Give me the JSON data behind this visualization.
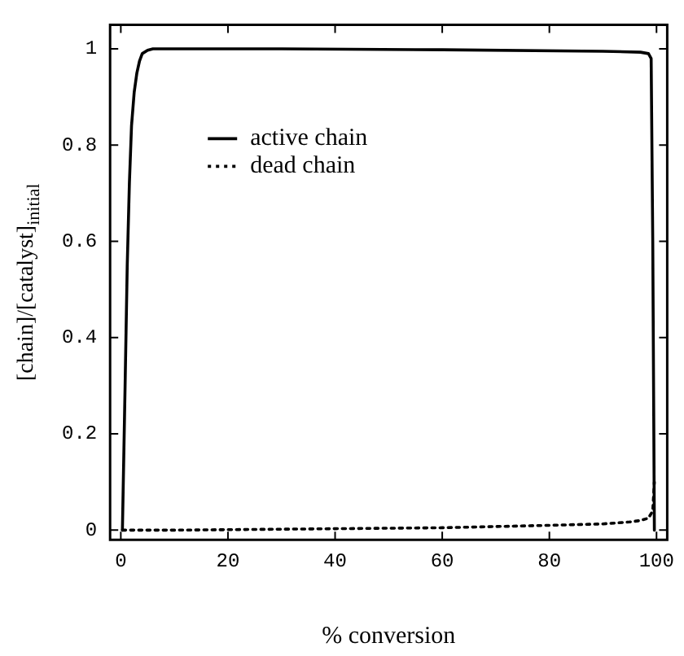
{
  "chart_data": {
    "type": "line",
    "xlabel": "% conversion",
    "ylabel": "[chain]/[catalyst]$_{initial}$",
    "xlim": [
      -2,
      102
    ],
    "ylim": [
      -0.02,
      1.05
    ],
    "xticks": [
      0,
      20,
      40,
      60,
      80,
      100
    ],
    "yticks": [
      0,
      0.2,
      0.4,
      0.6,
      0.8,
      1
    ],
    "grid": false,
    "legend": "top left",
    "marker": "none",
    "series": [
      {
        "name": "active chain",
        "color": "#000000",
        "line_style": "solid",
        "x": [
          0.3,
          0.8,
          1.2,
          1.6,
          2,
          2.5,
          3,
          3.5,
          4,
          5,
          6,
          10,
          30,
          60,
          90,
          97,
          98.5,
          99,
          99.3,
          99.6
        ],
        "values": [
          0,
          0.3,
          0.55,
          0.72,
          0.84,
          0.91,
          0.95,
          0.975,
          0.99,
          0.997,
          1,
          1,
          1,
          0.998,
          0.995,
          0.993,
          0.99,
          0.98,
          0.6,
          0
        ]
      },
      {
        "name": "dead chain",
        "color": "#000000",
        "line_style": "dotted",
        "x": [
          0.3,
          10,
          20,
          40,
          60,
          80,
          90,
          95,
          97,
          98.5,
          99.3,
          99.6
        ],
        "values": [
          0,
          0,
          0.001,
          0.003,
          0.005,
          0.01,
          0.013,
          0.017,
          0.02,
          0.025,
          0.04,
          0.1
        ]
      }
    ]
  }
}
